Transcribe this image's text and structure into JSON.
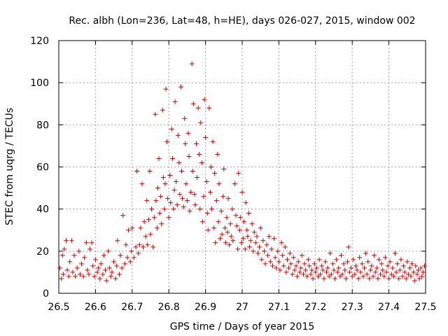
{
  "chart_data": {
    "type": "scatter",
    "title": "Rec. albh (Lon=236, Lat=48, h=HE), days 026-027, 2015, window 002",
    "xlabel": "GPS time / Days of year 2015",
    "ylabel": "STEC from uqrg / TECUs",
    "xlim": [
      26.5,
      27.5
    ],
    "ylim": [
      0,
      120
    ],
    "xticks": [
      26.5,
      26.6,
      26.7,
      26.8,
      26.9,
      27.0,
      27.1,
      27.2,
      27.3,
      27.4,
      27.5
    ],
    "xtick_labels": [
      "26.5",
      "26.6",
      "26.7",
      "26.8",
      "26.9",
      "27",
      "27.1",
      "27.2",
      "27.3",
      "27.4",
      "27.5"
    ],
    "yticks": [
      0,
      20,
      40,
      60,
      80,
      100,
      120
    ],
    "ytick_labels": [
      "0",
      "20",
      "40",
      "60",
      "80",
      "100",
      "120"
    ],
    "grid": true,
    "marker": "+",
    "series": [
      {
        "name": "STEC",
        "color": "#cc0000",
        "points": [
          [
            26.503,
            12
          ],
          [
            26.507,
            7
          ],
          [
            26.51,
            18
          ],
          [
            26.512,
            9
          ],
          [
            26.515,
            21
          ],
          [
            26.52,
            25
          ],
          [
            26.523,
            11
          ],
          [
            26.527,
            8
          ],
          [
            26.53,
            15
          ],
          [
            26.535,
            25
          ],
          [
            26.538,
            10
          ],
          [
            26.542,
            18
          ],
          [
            26.545,
            8
          ],
          [
            26.55,
            12
          ],
          [
            26.555,
            20
          ],
          [
            26.558,
            9
          ],
          [
            26.562,
            14
          ],
          [
            26.567,
            8
          ],
          [
            26.57,
            17
          ],
          [
            26.575,
            24
          ],
          [
            26.578,
            11
          ],
          [
            26.582,
            9
          ],
          [
            26.585,
            21
          ],
          [
            26.59,
            24
          ],
          [
            26.593,
            13
          ],
          [
            26.597,
            8
          ],
          [
            26.6,
            16
          ],
          [
            26.605,
            10
          ],
          [
            26.608,
            12
          ],
          [
            26.612,
            7
          ],
          [
            26.615,
            14
          ],
          [
            26.62,
            9
          ],
          [
            26.623,
            18
          ],
          [
            26.627,
            11
          ],
          [
            26.63,
            6
          ],
          [
            26.635,
            20
          ],
          [
            26.638,
            12
          ],
          [
            26.642,
            8
          ],
          [
            26.645,
            10
          ],
          [
            26.65,
            15
          ],
          [
            26.655,
            7
          ],
          [
            26.658,
            13
          ],
          [
            26.66,
            25
          ],
          [
            26.665,
            9
          ],
          [
            26.668,
            18
          ],
          [
            26.672,
            12
          ],
          [
            26.675,
            37
          ],
          [
            26.68,
            14
          ],
          [
            26.683,
            23
          ],
          [
            26.687,
            17
          ],
          [
            26.69,
            30
          ],
          [
            26.695,
            15
          ],
          [
            26.698,
            20
          ],
          [
            26.7,
            31
          ],
          [
            26.705,
            17
          ],
          [
            26.71,
            22
          ],
          [
            26.713,
            58
          ],
          [
            26.717,
            19
          ],
          [
            26.72,
            23
          ],
          [
            26.723,
            31
          ],
          [
            26.727,
            52
          ],
          [
            26.73,
            22
          ],
          [
            26.733,
            34
          ],
          [
            26.737,
            27
          ],
          [
            26.74,
            44
          ],
          [
            26.742,
            23
          ],
          [
            26.745,
            35
          ],
          [
            26.748,
            58
          ],
          [
            26.75,
            28
          ],
          [
            26.753,
            40
          ],
          [
            26.757,
            22
          ],
          [
            26.76,
            36
          ],
          [
            26.763,
            85
          ],
          [
            26.765,
            44
          ],
          [
            26.768,
            31
          ],
          [
            26.77,
            50
          ],
          [
            26.773,
            64
          ],
          [
            26.775,
            38
          ],
          [
            26.778,
            46
          ],
          [
            26.78,
            33
          ],
          [
            26.783,
            87
          ],
          [
            26.785,
            55
          ],
          [
            26.788,
            40
          ],
          [
            26.79,
            52
          ],
          [
            26.792,
            97
          ],
          [
            26.795,
            72
          ],
          [
            26.797,
            45
          ],
          [
            26.8,
            36
          ],
          [
            26.803,
            56
          ],
          [
            26.805,
            43
          ],
          [
            26.808,
            78
          ],
          [
            26.81,
            64
          ],
          [
            26.813,
            40
          ],
          [
            26.815,
            49
          ],
          [
            26.817,
            91
          ],
          [
            26.82,
            53
          ],
          [
            26.823,
            42
          ],
          [
            26.825,
            75
          ],
          [
            26.828,
            62
          ],
          [
            26.83,
            47
          ],
          [
            26.833,
            98
          ],
          [
            26.835,
            58
          ],
          [
            26.837,
            45
          ],
          [
            26.84,
            41
          ],
          [
            26.843,
            83
          ],
          [
            26.845,
            71
          ],
          [
            26.847,
            52
          ],
          [
            26.85,
            44
          ],
          [
            26.853,
            76
          ],
          [
            26.855,
            65
          ],
          [
            26.857,
            39
          ],
          [
            26.86,
            48
          ],
          [
            26.863,
            109
          ],
          [
            26.865,
            58
          ],
          [
            26.867,
            90
          ],
          [
            26.87,
            47
          ],
          [
            26.872,
            42
          ],
          [
            26.875,
            71
          ],
          [
            26.877,
            55
          ],
          [
            26.88,
            88
          ],
          [
            26.883,
            66
          ],
          [
            26.885,
            40
          ],
          [
            26.887,
            81
          ],
          [
            26.89,
            62
          ],
          [
            26.892,
            34
          ],
          [
            26.895,
            46
          ],
          [
            26.897,
            92
          ],
          [
            26.9,
            74
          ],
          [
            26.903,
            53
          ],
          [
            26.905,
            38
          ],
          [
            26.907,
            30
          ],
          [
            26.91,
            88
          ],
          [
            26.913,
            48
          ],
          [
            26.915,
            60
          ],
          [
            26.917,
            40
          ],
          [
            26.92,
            72
          ],
          [
            26.923,
            31
          ],
          [
            26.925,
            57
          ],
          [
            26.927,
            24
          ],
          [
            26.93,
            44
          ],
          [
            26.933,
            66
          ],
          [
            26.935,
            34
          ],
          [
            26.937,
            52
          ],
          [
            26.94,
            26
          ],
          [
            26.943,
            39
          ],
          [
            26.945,
            28
          ],
          [
            26.948,
            46
          ],
          [
            26.95,
            59
          ],
          [
            26.953,
            31
          ],
          [
            26.955,
            24
          ],
          [
            26.958,
            36
          ],
          [
            26.96,
            29
          ],
          [
            26.962,
            45
          ],
          [
            26.965,
            23
          ],
          [
            26.968,
            33
          ],
          [
            26.97,
            27
          ],
          [
            26.973,
            40
          ],
          [
            26.975,
            25
          ],
          [
            26.98,
            52
          ],
          [
            26.983,
            37
          ],
          [
            26.985,
            32
          ],
          [
            26.988,
            21
          ],
          [
            26.99,
            57
          ],
          [
            26.993,
            30
          ],
          [
            26.995,
            36
          ],
          [
            26.998,
            24
          ],
          [
            27.0,
            48
          ],
          [
            27.003,
            26
          ],
          [
            27.005,
            34
          ],
          [
            27.008,
            21
          ],
          [
            27.01,
            43
          ],
          [
            27.013,
            30
          ],
          [
            27.015,
            27
          ],
          [
            27.018,
            38
          ],
          [
            27.02,
            22
          ],
          [
            27.023,
            25
          ],
          [
            27.027,
            33
          ],
          [
            27.03,
            20
          ],
          [
            27.033,
            29
          ],
          [
            27.037,
            24
          ],
          [
            27.04,
            27
          ],
          [
            27.043,
            19
          ],
          [
            27.047,
            22
          ],
          [
            27.05,
            31
          ],
          [
            27.053,
            16
          ],
          [
            27.057,
            25
          ],
          [
            27.06,
            20
          ],
          [
            27.063,
            14
          ],
          [
            27.067,
            23
          ],
          [
            27.07,
            18
          ],
          [
            27.073,
            27
          ],
          [
            27.077,
            15
          ],
          [
            27.08,
            21
          ],
          [
            27.083,
            13
          ],
          [
            27.087,
            26
          ],
          [
            27.09,
            17
          ],
          [
            27.093,
            12
          ],
          [
            27.097,
            20
          ],
          [
            27.1,
            15
          ],
          [
            27.103,
            11
          ],
          [
            27.107,
            24
          ],
          [
            27.11,
            18
          ],
          [
            27.113,
            13
          ],
          [
            27.117,
            22
          ],
          [
            27.12,
            10
          ],
          [
            27.123,
            16
          ],
          [
            27.127,
            12
          ],
          [
            27.13,
            19
          ],
          [
            27.133,
            14
          ],
          [
            27.137,
            9
          ],
          [
            27.14,
            17
          ],
          [
            27.143,
            11
          ],
          [
            27.147,
            13
          ],
          [
            27.15,
            8
          ],
          [
            27.153,
            15
          ],
          [
            27.157,
            10
          ],
          [
            27.16,
            12
          ],
          [
            27.163,
            18
          ],
          [
            27.167,
            9
          ],
          [
            27.17,
            14
          ],
          [
            27.173,
            11
          ],
          [
            27.177,
            8
          ],
          [
            27.18,
            16
          ],
          [
            27.183,
            13
          ],
          [
            27.187,
            9
          ],
          [
            27.19,
            11
          ],
          [
            27.193,
            7
          ],
          [
            27.197,
            14
          ],
          [
            27.2,
            10
          ],
          [
            27.203,
            12
          ],
          [
            27.207,
            8
          ],
          [
            27.21,
            16
          ],
          [
            27.213,
            9
          ],
          [
            27.217,
            13
          ],
          [
            27.22,
            11
          ],
          [
            27.223,
            7
          ],
          [
            27.227,
            15
          ],
          [
            27.23,
            10
          ],
          [
            27.233,
            12
          ],
          [
            27.237,
            8
          ],
          [
            27.24,
            19
          ],
          [
            27.243,
            9
          ],
          [
            27.247,
            14
          ],
          [
            27.25,
            11
          ],
          [
            27.253,
            7
          ],
          [
            27.257,
            16
          ],
          [
            27.26,
            10
          ],
          [
            27.263,
            12
          ],
          [
            27.267,
            8
          ],
          [
            27.27,
            18
          ],
          [
            27.273,
            9
          ],
          [
            27.277,
            14
          ],
          [
            27.28,
            11
          ],
          [
            27.283,
            7
          ],
          [
            27.287,
            15
          ],
          [
            27.29,
            22
          ],
          [
            27.293,
            10
          ],
          [
            27.297,
            12
          ],
          [
            27.3,
            8
          ],
          [
            27.303,
            16
          ],
          [
            27.307,
            9
          ],
          [
            27.31,
            13
          ],
          [
            27.313,
            11
          ],
          [
            27.317,
            7
          ],
          [
            27.32,
            17
          ],
          [
            27.323,
            10
          ],
          [
            27.327,
            14
          ],
          [
            27.33,
            8
          ],
          [
            27.333,
            12
          ],
          [
            27.337,
            19
          ],
          [
            27.34,
            9
          ],
          [
            27.343,
            15
          ],
          [
            27.347,
            7
          ],
          [
            27.35,
            11
          ],
          [
            27.353,
            13
          ],
          [
            27.357,
            8
          ],
          [
            27.36,
            18
          ],
          [
            27.363,
            10
          ],
          [
            27.367,
            12
          ],
          [
            27.37,
            7
          ],
          [
            27.373,
            16
          ],
          [
            27.377,
            9
          ],
          [
            27.38,
            14
          ],
          [
            27.383,
            11
          ],
          [
            27.387,
            8
          ],
          [
            27.39,
            17
          ],
          [
            27.393,
            10
          ],
          [
            27.397,
            13
          ],
          [
            27.4,
            7
          ],
          [
            27.403,
            15
          ],
          [
            27.407,
            9
          ],
          [
            27.41,
            12
          ],
          [
            27.413,
            8
          ],
          [
            27.417,
            19
          ],
          [
            27.42,
            10
          ],
          [
            27.423,
            14
          ],
          [
            27.427,
            7
          ],
          [
            27.43,
            11
          ],
          [
            27.433,
            16
          ],
          [
            27.437,
            8
          ],
          [
            27.44,
            13
          ],
          [
            27.443,
            10
          ],
          [
            27.447,
            7
          ],
          [
            27.45,
            15
          ],
          [
            27.453,
            9
          ],
          [
            27.457,
            12
          ],
          [
            27.46,
            8
          ],
          [
            27.463,
            14
          ],
          [
            27.467,
            10
          ],
          [
            27.47,
            6
          ],
          [
            27.473,
            13
          ],
          [
            27.477,
            9
          ],
          [
            27.48,
            11
          ],
          [
            27.483,
            7
          ],
          [
            27.487,
            12
          ],
          [
            27.49,
            8
          ],
          [
            27.493,
            10
          ],
          [
            27.497,
            13
          ]
        ]
      }
    ]
  }
}
